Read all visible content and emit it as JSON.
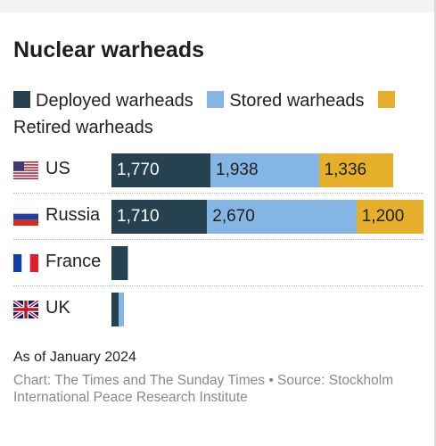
{
  "chart_data": {
    "type": "bar",
    "orientation": "horizontal",
    "stacked": true,
    "title": "Nuclear warheads",
    "categories": [
      "US",
      "Russia",
      "France",
      "UK"
    ],
    "series": [
      {
        "name": "Deployed warheads",
        "color": "#26414f",
        "values": [
          1770,
          1710,
          280,
          120
        ],
        "labels": [
          "1,770",
          "1,710",
          "",
          ""
        ]
      },
      {
        "name": "Stored warheads",
        "color": "#85b5e3",
        "values": [
          1938,
          2670,
          10,
          105
        ],
        "labels": [
          "1,938",
          "2,670",
          "",
          ""
        ]
      },
      {
        "name": "Retired warheads",
        "color": "#e5af2b",
        "values": [
          1336,
          1200,
          0,
          0
        ],
        "labels": [
          "1,336",
          "1,200",
          "",
          ""
        ]
      }
    ],
    "xlim": [
      0,
      5580
    ],
    "legend_position": "top",
    "grid": false
  },
  "countries": [
    {
      "name": "US",
      "flag": "us-flag-icon"
    },
    {
      "name": "Russia",
      "flag": "russia-flag-icon"
    },
    {
      "name": "France",
      "flag": "france-flag-icon"
    },
    {
      "name": "UK",
      "flag": "uk-flag-icon"
    }
  ],
  "note": "As of January 2024",
  "source": "Chart: The Times and The Sunday Times • Source: Stockholm International Peace Research Institute"
}
